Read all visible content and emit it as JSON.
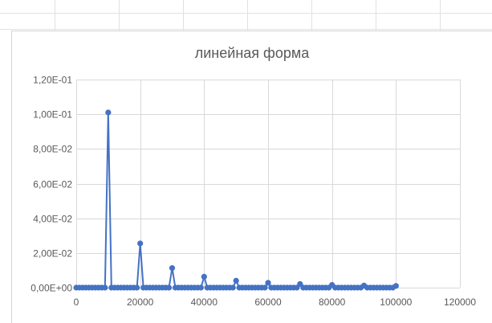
{
  "chart_data": {
    "type": "line",
    "title": "линейная форма",
    "xlabel": "",
    "ylabel": "",
    "xlim": [
      0,
      120000
    ],
    "ylim": [
      0,
      0.12
    ],
    "x_ticks": [
      "0",
      "20000",
      "40000",
      "60000",
      "80000",
      "100000",
      "120000"
    ],
    "y_ticks": [
      "0,00E+00",
      "2,00E-02",
      "4,00E-02",
      "6,00E-02",
      "8,00E-02",
      "1,00E-01",
      "1,20E-01"
    ],
    "grid": true,
    "legend": "none",
    "color": "#4472C4",
    "series": [
      {
        "x": [
          0,
          1000,
          2000,
          3000,
          4000,
          5000,
          6000,
          7000,
          8000,
          9000,
          10000,
          11000,
          12000,
          13000,
          14000,
          15000,
          16000,
          17000,
          18000,
          19000,
          20000,
          21000,
          22000,
          23000,
          24000,
          25000,
          26000,
          27000,
          28000,
          29000,
          30000,
          31000,
          32000,
          33000,
          34000,
          35000,
          36000,
          37000,
          38000,
          39000,
          40000,
          41000,
          42000,
          43000,
          44000,
          45000,
          46000,
          47000,
          48000,
          49000,
          50000,
          51000,
          52000,
          53000,
          54000,
          55000,
          56000,
          57000,
          58000,
          59000,
          60000,
          61000,
          62000,
          63000,
          64000,
          65000,
          66000,
          67000,
          68000,
          69000,
          70000,
          71000,
          72000,
          73000,
          74000,
          75000,
          76000,
          77000,
          78000,
          79000,
          80000,
          81000,
          82000,
          83000,
          84000,
          85000,
          86000,
          87000,
          88000,
          89000,
          90000,
          91000,
          92000,
          93000,
          94000,
          95000,
          96000,
          97000,
          98000,
          99000,
          100000
        ],
        "y": [
          0,
          0,
          0,
          0,
          0,
          0,
          0,
          0,
          0,
          0,
          0.101,
          0,
          0,
          0,
          0,
          0,
          0,
          0,
          0,
          0,
          0.0255,
          0,
          0,
          0,
          0,
          0,
          0,
          0,
          0,
          0,
          0.0113,
          0,
          0,
          0,
          0,
          0,
          0,
          0,
          0,
          0,
          0.0063,
          0,
          0,
          0,
          0,
          0,
          0,
          0,
          0,
          0,
          0.004,
          0,
          0,
          0,
          0,
          0,
          0,
          0,
          0,
          0,
          0.0028,
          0,
          0,
          0,
          0,
          0,
          0,
          0,
          0,
          0,
          0.0021,
          0,
          0,
          0,
          0,
          0,
          0,
          0,
          0,
          0,
          0.0016,
          0,
          0,
          0,
          0,
          0,
          0,
          0,
          0,
          0,
          0.0012,
          0,
          0,
          0,
          0,
          0,
          0,
          0,
          0,
          0,
          0.001
        ]
      }
    ]
  }
}
